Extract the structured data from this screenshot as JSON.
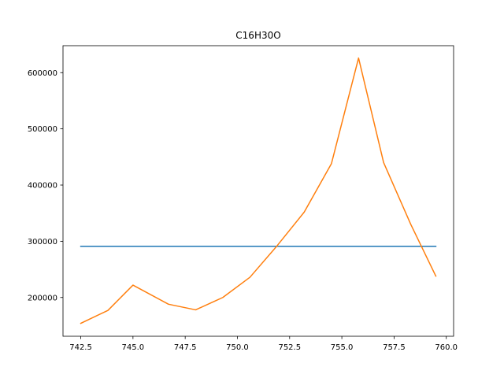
{
  "chart_data": {
    "type": "line",
    "title": "C16H30O",
    "xlabel": "",
    "ylabel": "",
    "xlim": [
      741.65,
      760.35
    ],
    "ylim": [
      131000,
      648000
    ],
    "xticks": [
      742.5,
      745.0,
      747.5,
      750.0,
      752.5,
      755.0,
      757.5,
      760.0
    ],
    "xtick_labels": [
      "742.5",
      "745.0",
      "747.5",
      "750.0",
      "752.5",
      "755.0",
      "757.5",
      "760.0"
    ],
    "yticks": [
      200000,
      300000,
      400000,
      500000,
      600000
    ],
    "ytick_labels": [
      "200000",
      "300000",
      "400000",
      "500000",
      "600000"
    ],
    "grid": false,
    "series": [
      {
        "color": "#1f77b4",
        "x": [
          742.5,
          759.5
        ],
        "y": [
          291000,
          291000
        ]
      },
      {
        "color": "#ff7f0e",
        "x": [
          742.5,
          743.8,
          745.0,
          746.7,
          748.0,
          749.3,
          750.6,
          751.9,
          753.2,
          754.5,
          755.8,
          757.0,
          758.3,
          759.5
        ],
        "y": [
          154000,
          177000,
          222000,
          188000,
          178000,
          200000,
          236000,
          292000,
          352000,
          438000,
          626000,
          440000,
          330000,
          238000
        ]
      }
    ]
  }
}
